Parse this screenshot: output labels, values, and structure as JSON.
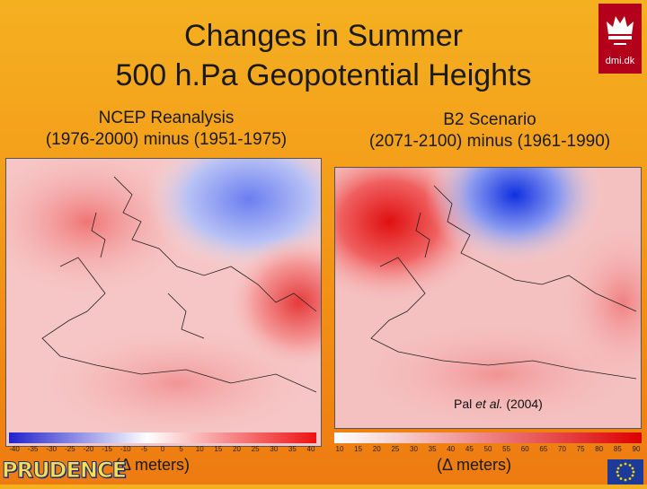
{
  "title_line1": "Changes in Summer",
  "title_line2": "500 h.Pa Geopotential Heights",
  "logo_text": "dmi.dk",
  "left": {
    "heading1": "NCEP Reanalysis",
    "heading2": "(1976-2000) minus (1951-1975)",
    "scale_ticks": [
      "-40",
      "-35",
      "-30",
      "-25",
      "-20",
      "-15",
      "-10",
      "-5",
      "0",
      "5",
      "10",
      "15",
      "20",
      "25",
      "30",
      "35",
      "40"
    ],
    "units": "(Δ meters)"
  },
  "right": {
    "heading1": "B2 Scenario",
    "heading2": "(2071-2100) minus (1961-1990)",
    "scale_ticks": [
      "10",
      "15",
      "20",
      "25",
      "30",
      "35",
      "40",
      "45",
      "50",
      "55",
      "60",
      "65",
      "70",
      "75",
      "80",
      "85",
      "90"
    ],
    "units": "(Δ meters)"
  },
  "credit_prefix": "Pal ",
  "credit_italic": "et al.",
  "credit_suffix": " (2004)",
  "footer_logo": "PRUDENCE",
  "colors": {
    "negative": "#3355dd",
    "positive": "#e8202a",
    "background": "#f39a18"
  }
}
